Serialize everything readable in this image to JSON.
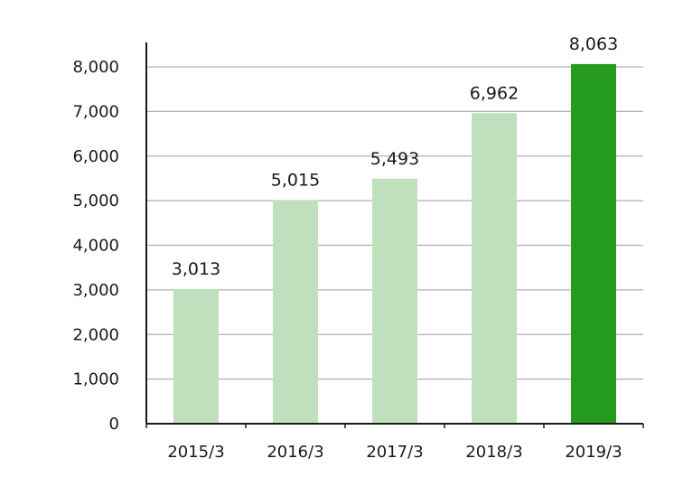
{
  "chart_data": {
    "type": "bar",
    "title": "",
    "xlabel": "",
    "ylabel": "",
    "categories": [
      "2015/3",
      "2016/3",
      "2017/3",
      "2018/3",
      "2019/3"
    ],
    "values": [
      3013,
      5015,
      5493,
      6962,
      8063
    ],
    "value_labels": [
      "3,013",
      "5,015",
      "5,493",
      "6,962",
      "8,063"
    ],
    "ylim": [
      0,
      8000
    ],
    "yticks": [
      0,
      1000,
      2000,
      3000,
      4000,
      5000,
      6000,
      7000,
      8000
    ],
    "ytick_labels": [
      "0",
      "1,000",
      "2,000",
      "3,000",
      "4,000",
      "5,000",
      "6,000",
      "7,000",
      "8,000"
    ],
    "grid": true,
    "legend": "none",
    "colors": {
      "bar": "#c0e0bd",
      "highlight_bar": "#259b1e",
      "grid": "#b0b0b0",
      "axis": "#1a1a1a"
    },
    "highlight_index": 4
  }
}
